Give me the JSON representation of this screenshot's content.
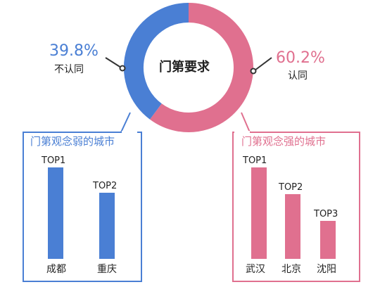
{
  "colors": {
    "blue": "#4a7fd4",
    "pink": "#e0708f",
    "text": "#222222"
  },
  "chart_data": [
    {
      "type": "pie",
      "title": "门第要求",
      "slices": [
        {
          "name": "不认同",
          "value": 39.8,
          "label": "39.8%",
          "color": "#4a7fd4"
        },
        {
          "name": "认同",
          "value": 60.2,
          "label": "60.2%",
          "color": "#e0708f"
        }
      ]
    },
    {
      "type": "bar",
      "title": "门第观念弱的城市",
      "color": "#4a7fd4",
      "categories": [
        "成都",
        "重庆"
      ],
      "ranks": [
        "TOP1",
        "TOP2"
      ],
      "values": [
        1,
        2
      ]
    },
    {
      "type": "bar",
      "title": "门第观念强的城市",
      "color": "#e0708f",
      "categories": [
        "武汉",
        "北京",
        "沈阳"
      ],
      "ranks": [
        "TOP1",
        "TOP2",
        "TOP3"
      ],
      "values": [
        1,
        2,
        3
      ]
    }
  ]
}
